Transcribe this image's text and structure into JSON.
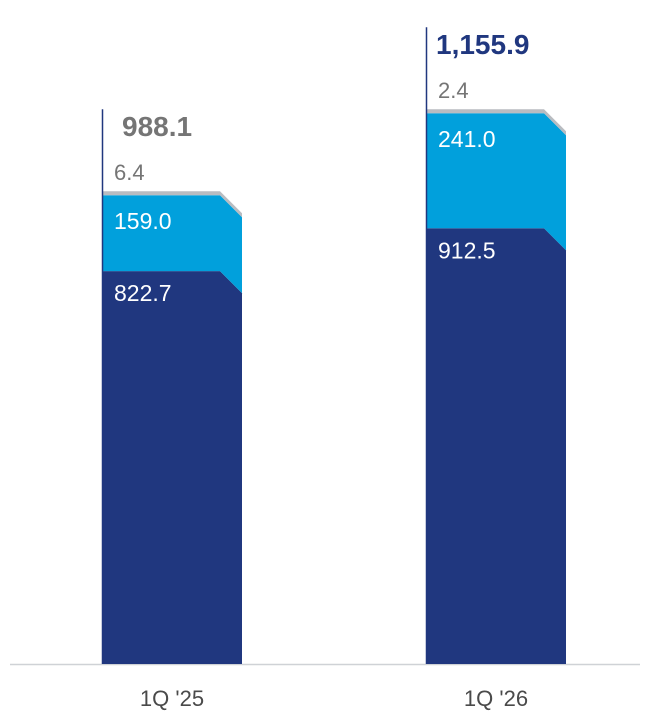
{
  "chart_data": {
    "type": "bar",
    "stacked": true,
    "categories": [
      "1Q '25",
      "1Q '26"
    ],
    "series": [
      {
        "values": [
          822.7,
          912.5
        ],
        "color": "#20377f"
      },
      {
        "values": [
          159.0,
          241.0
        ],
        "color": "#01a0dc"
      },
      {
        "values": [
          6.4,
          2.4
        ],
        "color": "#b9bcc1"
      }
    ],
    "totals": [
      "988.1",
      "1,155.9"
    ],
    "segment_labels": [
      [
        "822.7",
        "159.0",
        "6.4"
      ],
      [
        "912.5",
        "241.0",
        "2.4"
      ]
    ],
    "total_colors": [
      "#757575",
      "#20377f"
    ],
    "small_label_color": "#757575",
    "axis_color": "#cfd2d6",
    "xlabel": "",
    "ylabel": "",
    "title": "",
    "grid": false,
    "legend": "none"
  }
}
